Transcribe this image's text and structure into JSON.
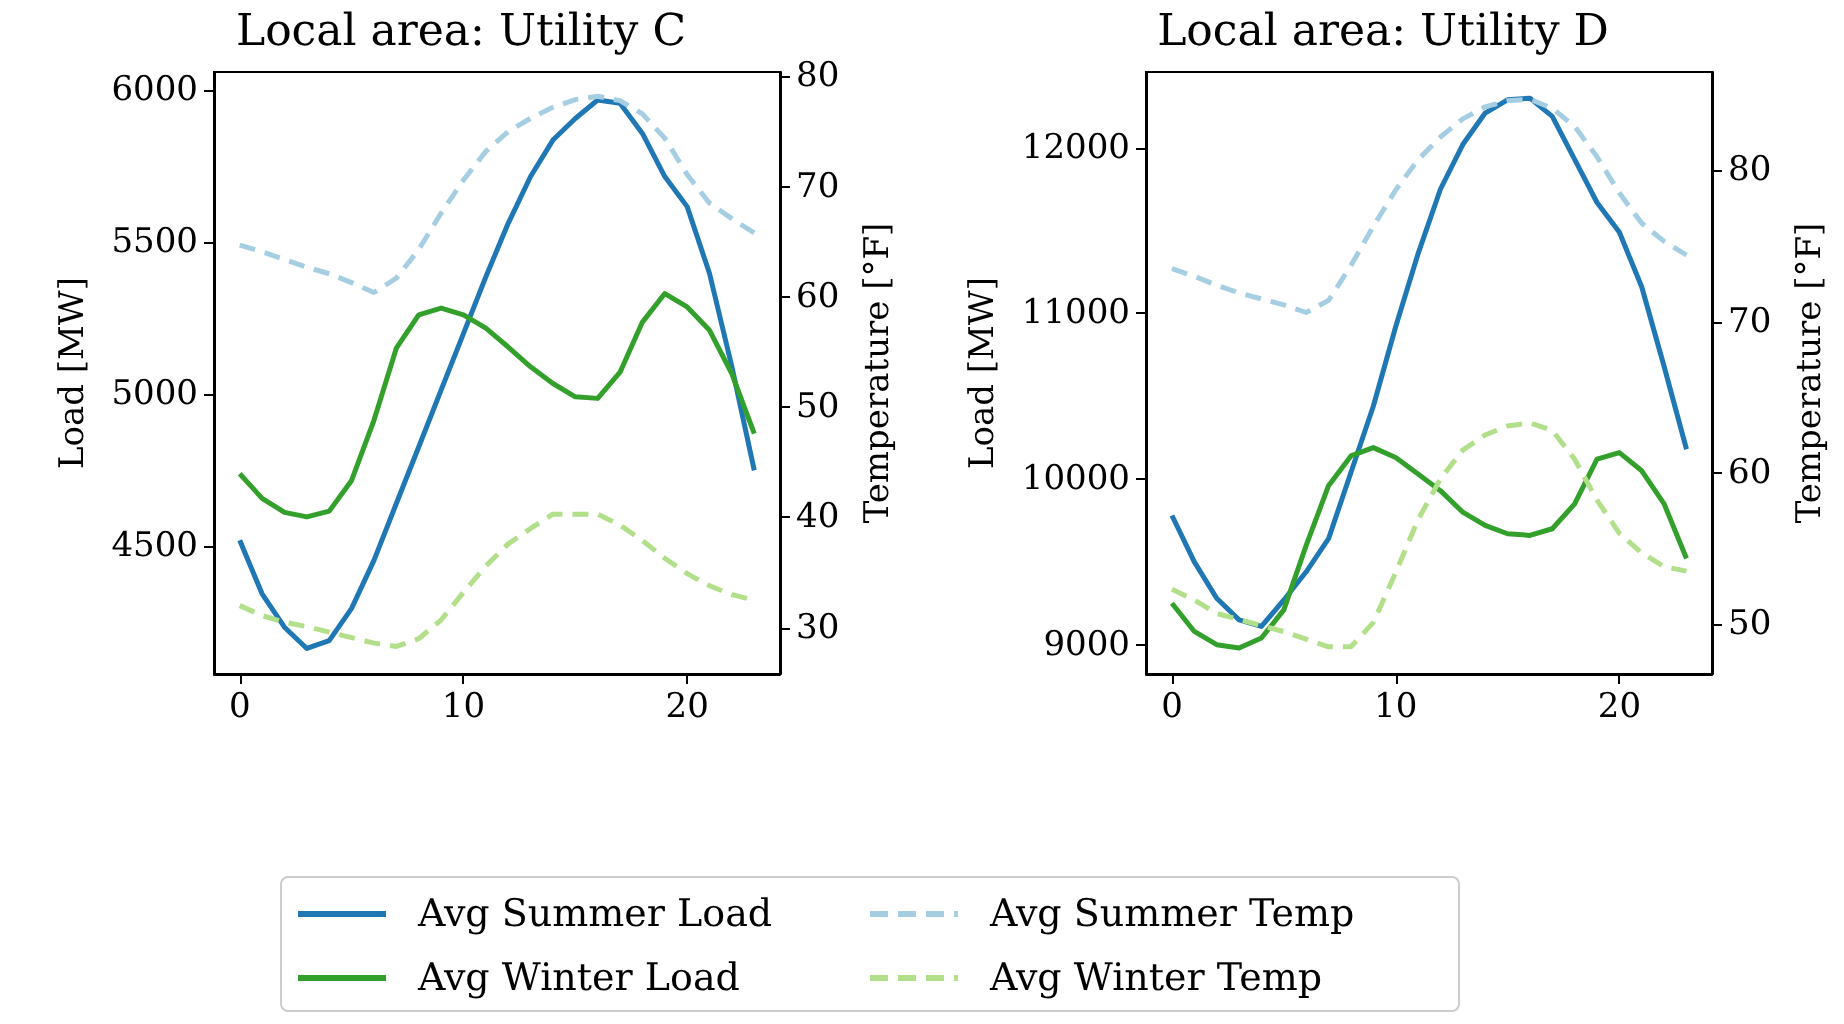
{
  "chart_data": [
    {
      "type": "line",
      "title": "Local area: Utility C",
      "ylabel": "Load [MW]",
      "y2label": "Temperature [°F]",
      "legend": "bottom",
      "x": [
        0,
        1,
        2,
        3,
        4,
        5,
        6,
        7,
        8,
        9,
        10,
        11,
        12,
        13,
        14,
        15,
        16,
        17,
        18,
        19,
        20,
        21,
        22,
        23
      ],
      "xlim": [
        -1.15,
        24.15
      ],
      "xticks": [
        0,
        10,
        20
      ],
      "ylim": [
        4078,
        6059
      ],
      "yticks": [
        4500,
        5000,
        5500,
        6000
      ],
      "y2lim": [
        25.8,
        80.4
      ],
      "y2ticks": [
        30,
        40,
        50,
        60,
        70,
        80
      ],
      "series": [
        {
          "name": "Avg Summer Load",
          "color": "#1f78b4",
          "values": [
            4518,
            4342,
            4232,
            4162,
            4188,
            4294,
            4452,
            4639,
            4825,
            5012,
            5198,
            5385,
            5561,
            5715,
            5835,
            5906,
            5967,
            5956,
            5857,
            5715,
            5616,
            5396,
            5089,
            4748
          ]
        },
        {
          "name": "Avg Winter Load",
          "color": "#33a02c",
          "values": [
            4737,
            4656,
            4610,
            4595,
            4614,
            4715,
            4913,
            5150,
            5260,
            5282,
            5260,
            5216,
            5154,
            5089,
            5034,
            4990,
            4985,
            5071,
            5236,
            5330,
            5286,
            5209,
            5066,
            4869
          ]
        },
        {
          "name": "Avg Summer Temp",
          "color": "#a6cee3",
          "axis": "y2",
          "line_style": "dashed",
          "values": [
            64.7,
            64.1,
            63.4,
            62.7,
            62.1,
            61.3,
            60.4,
            61.7,
            64.3,
            67.6,
            70.6,
            73.2,
            75.0,
            76.2,
            77.2,
            77.9,
            78.2,
            77.8,
            76.6,
            74.4,
            71.1,
            68.5,
            67.1,
            65.8
          ]
        },
        {
          "name": "Avg Winter Temp",
          "color": "#b2df8a",
          "axis": "y2",
          "line_style": "dashed",
          "values": [
            32.0,
            31.1,
            30.5,
            30.1,
            29.6,
            29.1,
            28.6,
            28.3,
            29.0,
            30.7,
            33.2,
            35.6,
            37.6,
            39.0,
            40.3,
            40.3,
            40.3,
            39.3,
            37.9,
            36.3,
            34.9,
            33.8,
            33.0,
            32.5
          ]
        }
      ]
    },
    {
      "type": "line",
      "title": "Local area: Utility D",
      "ylabel": "Load [MW]",
      "y2label": "Temperature [°F]",
      "x": [
        0,
        1,
        2,
        3,
        4,
        5,
        6,
        7,
        8,
        9,
        10,
        11,
        12,
        13,
        14,
        15,
        16,
        17,
        18,
        19,
        20,
        21,
        22,
        23
      ],
      "xlim": [
        -1.16,
        24.14
      ],
      "xticks": [
        0,
        10,
        20
      ],
      "ylim": [
        8823,
        12458
      ],
      "yticks": [
        9000,
        10000,
        11000,
        12000
      ],
      "y2lim": [
        46.7,
        86.5
      ],
      "y2ticks": [
        50,
        60,
        70,
        80
      ],
      "series": [
        {
          "color": "#1f78b4",
          "values": [
            9780,
            9500,
            9280,
            9150,
            9110,
            9270,
            9440,
            9640,
            10040,
            10440,
            10920,
            11360,
            11750,
            12020,
            12210,
            12290,
            12300,
            12190,
            11930,
            11670,
            11490,
            11160,
            10680,
            10180
          ]
        },
        {
          "color": "#33a02c",
          "values": [
            9250,
            9080,
            9000,
            8980,
            9040,
            9210,
            9600,
            9960,
            10140,
            10190,
            10130,
            10030,
            9930,
            9800,
            9720,
            9670,
            9660,
            9700,
            9850,
            10120,
            10160,
            10050,
            9850,
            9520
          ]
        },
        {
          "color": "#a6cee3",
          "axis": "y2",
          "line_style": "dashed",
          "values": [
            73.5,
            73.0,
            72.4,
            71.9,
            71.5,
            71.1,
            70.6,
            71.4,
            73.7,
            76.3,
            78.7,
            80.7,
            82.2,
            83.4,
            84.2,
            84.6,
            84.7,
            84.1,
            82.9,
            80.9,
            78.5,
            76.5,
            75.3,
            74.4
          ]
        },
        {
          "color": "#b2df8a",
          "axis": "y2",
          "line_style": "dashed",
          "values": [
            52.3,
            51.6,
            50.7,
            50.3,
            49.9,
            49.5,
            49.0,
            48.5,
            48.5,
            50.1,
            53.4,
            56.9,
            59.6,
            61.5,
            62.5,
            63.1,
            63.3,
            62.8,
            60.9,
            58.2,
            56.0,
            54.7,
            53.8,
            53.5
          ]
        }
      ]
    }
  ]
}
